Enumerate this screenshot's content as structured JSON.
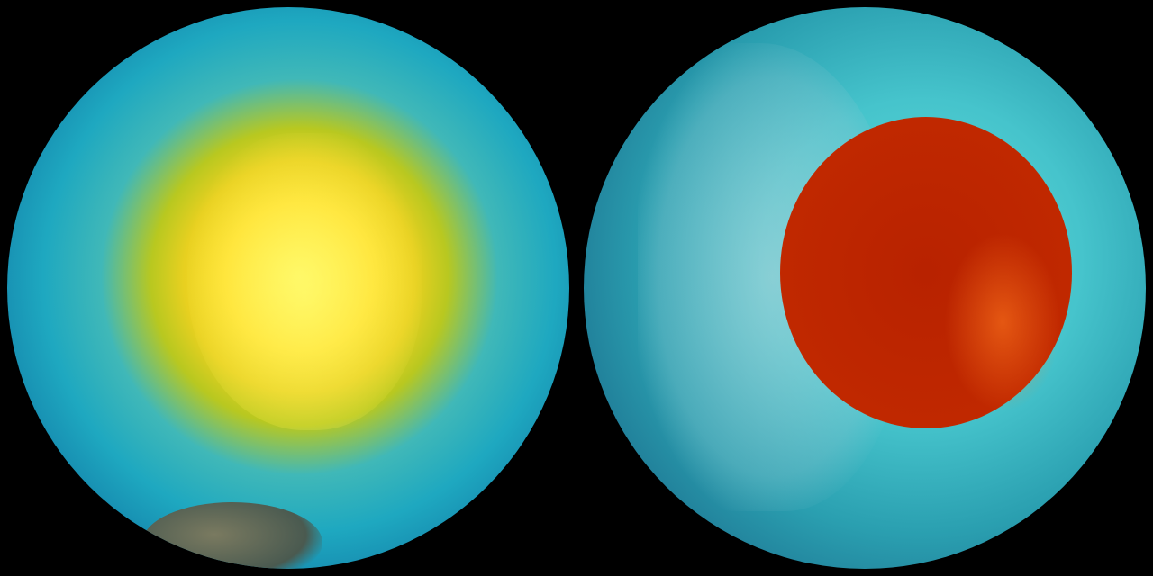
{
  "panels": [
    {
      "id": "left-globe",
      "colors": {
        "center": "#fff35a",
        "mid": "#1ea8c0",
        "edge": "#062a48"
      }
    },
    {
      "id": "right-globe",
      "colors": {
        "anomaly": "#c02800",
        "ocean": "#46c4cc",
        "edge": "#0c3a5c"
      }
    }
  ],
  "background": "#000000"
}
